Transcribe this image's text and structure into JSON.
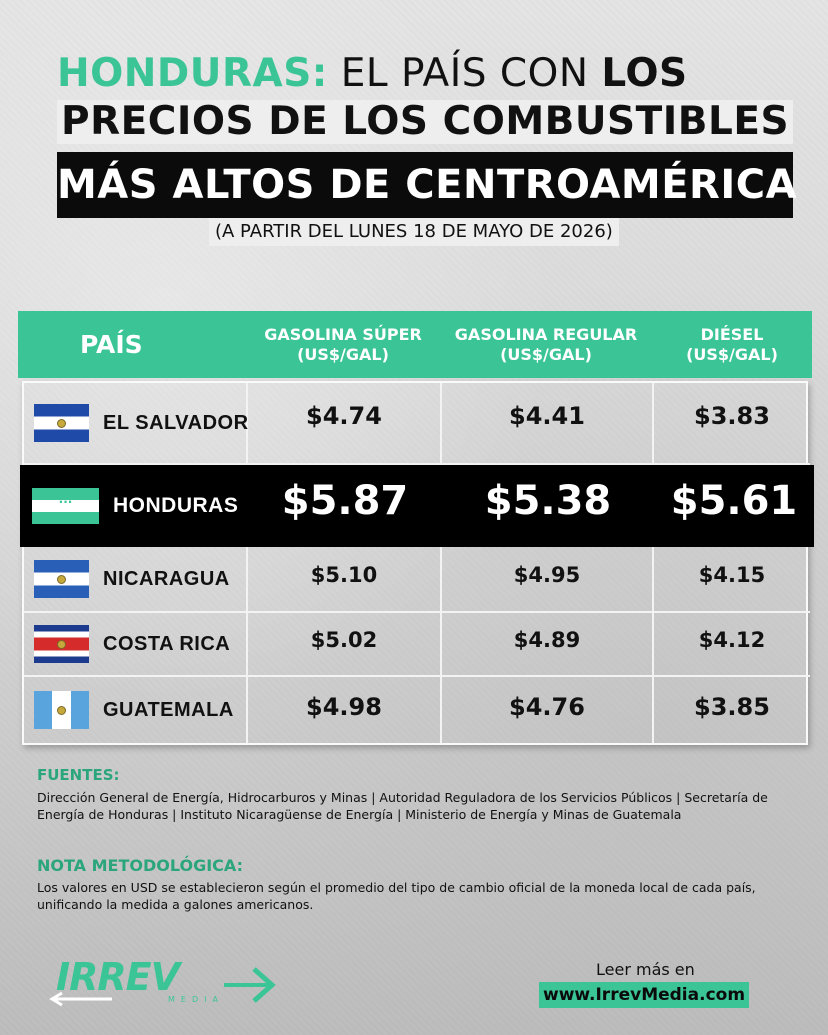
{
  "header": {
    "line1_accent": "HONDURAS:",
    "line1_thin": " EL PAÍS CON ",
    "line1_bold": "LOS",
    "line2": "PRECIOS DE LOS COMBUSTIBLES",
    "line3": "MÁS ALTOS DE CENTROAMÉRICA",
    "subtitle": "(A PARTIR DEL LUNES 18 DE MAYO DE 2026)"
  },
  "table": {
    "columns": [
      "PAÍS",
      "GASOLINA SÚPER (US$/GAL)",
      "GASOLINA REGULAR (US$/GAL)",
      "DIÉSEL (US$/GAL)"
    ],
    "columns_split": [
      {
        "l1": "PAÍS",
        "l2": ""
      },
      {
        "l1": "GASOLINA SÚPER",
        "l2": "(US$/GAL)"
      },
      {
        "l1": "GASOLINA REGULAR",
        "l2": "(US$/GAL)"
      },
      {
        "l1": "DIÉSEL",
        "l2": "(US$/GAL)"
      }
    ],
    "rows": [
      {
        "country": "EL SALVADOR",
        "flag": "el-salvador-flag-icon",
        "super": "$4.74",
        "regular": "$4.41",
        "diesel": "$3.83",
        "highlight": false
      },
      {
        "country": "HONDURAS",
        "flag": "honduras-flag-icon",
        "super": "$5.87",
        "regular": "$5.38",
        "diesel": "$5.61",
        "highlight": true
      },
      {
        "country": "NICARAGUA",
        "flag": "nicaragua-flag-icon",
        "super": "$5.10",
        "regular": "$4.95",
        "diesel": "$4.15",
        "highlight": false
      },
      {
        "country": "COSTA RICA",
        "flag": "costa-rica-flag-icon",
        "super": "$5.02",
        "regular": "$4.89",
        "diesel": "$4.12",
        "highlight": false
      },
      {
        "country": "GUATEMALA",
        "flag": "guatemala-flag-icon",
        "super": "$4.98",
        "regular": "$4.76",
        "diesel": "$3.85",
        "highlight": false
      }
    ]
  },
  "sources": {
    "title": "FUENTES:",
    "text": "Dirección General de Energía, Hidrocarburos y Minas | Autoridad Reguladora de los Servicios Públicos | Secretaría de Energía de Honduras | Instituto Nicaragüense de Energía | Ministerio de Energía y Minas de Guatemala"
  },
  "note": {
    "title": "NOTA METODOLÓGICA:",
    "text": "Los valores en USD se establecieron según el promedio del tipo de cambio oficial de la moneda local de cada país, unificando la medida a galones americanos."
  },
  "footer": {
    "logo_text": "IRREV",
    "logo_sub": "MEDIA",
    "read_more": "Leer más en",
    "link": "www.IrrevMedia.com"
  },
  "colors": {
    "accent": "#3bc596",
    "dark": "#0b0b0b",
    "highlight_row": "#000000"
  }
}
